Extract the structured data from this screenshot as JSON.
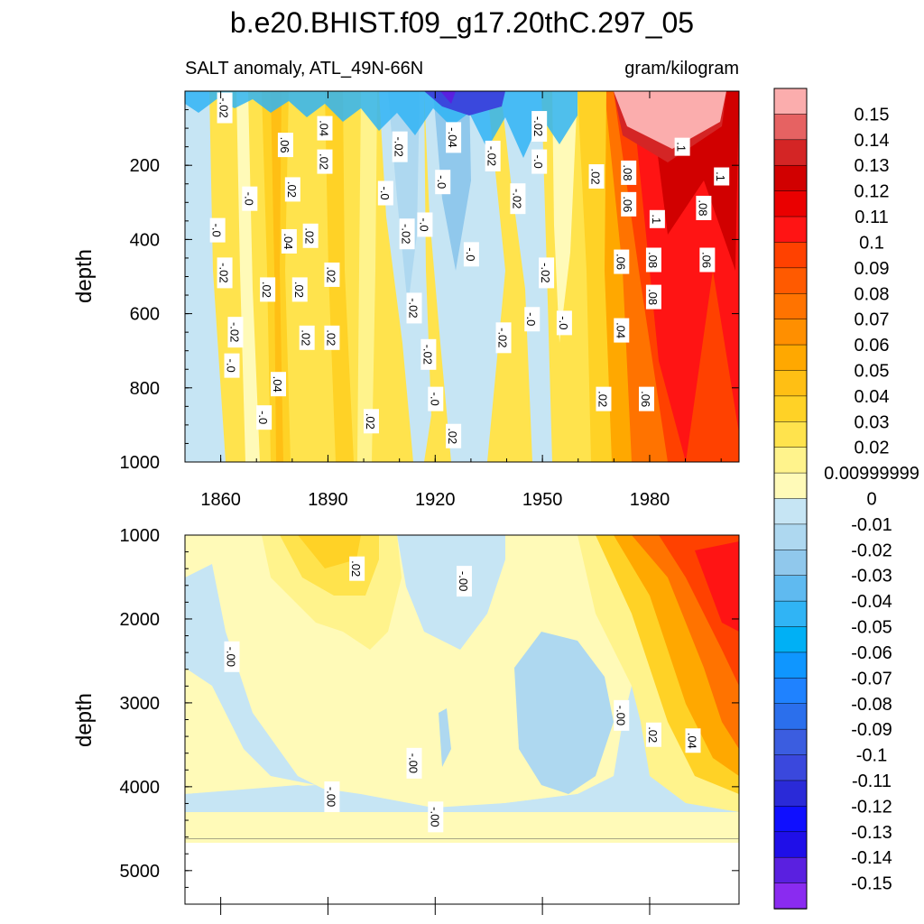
{
  "title": "b.e20.BHIST.f09_g17.20thC.297_05",
  "subtitle_left": "SALT anomaly, ATL_49N-66N",
  "subtitle_right": "gram/kilogram",
  "chart_data": [
    {
      "type": "heatmap",
      "panel": "upper",
      "ylabel": "depth",
      "xlim": [
        1850,
        2005
      ],
      "ylim": [
        1000,
        0
      ],
      "x_ticks": [
        1860,
        1890,
        1920,
        1950,
        1980
      ],
      "y_ticks": [
        200,
        400,
        600,
        800,
        1000
      ],
      "contour_labels": [
        {
          "text": "-.02",
          "x": 1861,
          "y": 45
        },
        {
          "text": ".06",
          "x": 1878,
          "y": 145
        },
        {
          "text": ".04",
          "x": 1889,
          "y": 100
        },
        {
          "text": "-.02",
          "x": 1910,
          "y": 150
        },
        {
          "text": "-.04",
          "x": 1925,
          "y": 125
        },
        {
          "text": "-.02",
          "x": 1949,
          "y": 95
        },
        {
          "text": "-.02",
          "x": 1936,
          "y": 175
        },
        {
          "text": "-.0",
          "x": 1949,
          "y": 190
        },
        {
          "text": ".02",
          "x": 1889,
          "y": 190
        },
        {
          "text": ".02",
          "x": 1880,
          "y": 265
        },
        {
          "text": "-.0",
          "x": 1868,
          "y": 290
        },
        {
          "text": "-.0",
          "x": 1906,
          "y": 275
        },
        {
          "text": "-.0",
          "x": 1922,
          "y": 245
        },
        {
          "text": "-.02",
          "x": 1943,
          "y": 290
        },
        {
          "text": ".02",
          "x": 1965,
          "y": 230
        },
        {
          "text": ".08",
          "x": 1974,
          "y": 220
        },
        {
          "text": ".06",
          "x": 1974,
          "y": 305
        },
        {
          "text": ".1",
          "x": 1989,
          "y": 150
        },
        {
          "text": ".1",
          "x": 2000,
          "y": 230
        },
        {
          "text": ".1",
          "x": 1982,
          "y": 345
        },
        {
          "text": ".08",
          "x": 1995,
          "y": 315
        },
        {
          "text": "-.0",
          "x": 1859,
          "y": 375
        },
        {
          "text": "-.0",
          "x": 1917,
          "y": 360
        },
        {
          "text": "-.02",
          "x": 1912,
          "y": 385
        },
        {
          "text": ".02",
          "x": 1885,
          "y": 390
        },
        {
          "text": ".04",
          "x": 1879,
          "y": 405
        },
        {
          "text": ".06",
          "x": 1972,
          "y": 460
        },
        {
          "text": ".08",
          "x": 1981,
          "y": 455
        },
        {
          "text": ".06",
          "x": 1996,
          "y": 455
        },
        {
          "text": "-.0",
          "x": 1930,
          "y": 440
        },
        {
          "text": "-.02",
          "x": 1861,
          "y": 490
        },
        {
          "text": ".02",
          "x": 1891,
          "y": 495
        },
        {
          "text": "-.02",
          "x": 1951,
          "y": 490
        },
        {
          "text": ".02",
          "x": 1873,
          "y": 535
        },
        {
          "text": ".02",
          "x": 1882,
          "y": 535
        },
        {
          "text": ".08",
          "x": 1981,
          "y": 555
        },
        {
          "text": "-.02",
          "x": 1914,
          "y": 585
        },
        {
          "text": "-.0",
          "x": 1947,
          "y": 615
        },
        {
          "text": "-.0",
          "x": 1956,
          "y": 625
        },
        {
          "text": ".04",
          "x": 1972,
          "y": 645
        },
        {
          "text": "-.02",
          "x": 1864,
          "y": 650
        },
        {
          "text": ".02",
          "x": 1884,
          "y": 665
        },
        {
          "text": ".02",
          "x": 1891,
          "y": 665
        },
        {
          "text": "-.02",
          "x": 1939,
          "y": 665
        },
        {
          "text": "-.02",
          "x": 1918,
          "y": 710
        },
        {
          "text": "-.0",
          "x": 1863,
          "y": 740
        },
        {
          "text": ".04",
          "x": 1876,
          "y": 790
        },
        {
          "text": ".02",
          "x": 1967,
          "y": 830
        },
        {
          "text": ".06",
          "x": 1979,
          "y": 830
        },
        {
          "text": "-.0",
          "x": 1920,
          "y": 830
        },
        {
          "text": "-.0",
          "x": 1872,
          "y": 880
        },
        {
          "text": ".02",
          "x": 1902,
          "y": 890
        },
        {
          "text": ".02",
          "x": 1925,
          "y": 930
        }
      ]
    },
    {
      "type": "heatmap",
      "panel": "lower",
      "ylabel": "depth",
      "xlim": [
        1850,
        2005
      ],
      "ylim": [
        5400,
        1000
      ],
      "y_ticks": [
        1000,
        2000,
        3000,
        4000,
        5000
      ],
      "data_bottom_depth": 4620,
      "contour_labels": [
        {
          "text": ".02",
          "x": 1898,
          "y": 1400
        },
        {
          "text": "-.00",
          "x": 1928,
          "y": 1550
        },
        {
          "text": "-.00",
          "x": 1863,
          "y": 2450
        },
        {
          "text": "-.00",
          "x": 1972,
          "y": 3150
        },
        {
          "text": ".02",
          "x": 1981,
          "y": 3380
        },
        {
          "text": ".04",
          "x": 1992,
          "y": 3450
        },
        {
          "text": "-.00",
          "x": 1914,
          "y": 3720
        },
        {
          "text": "-.00",
          "x": 1891,
          "y": 4120
        },
        {
          "text": "-.00",
          "x": 1920,
          "y": 4360
        }
      ]
    }
  ],
  "colorbar": {
    "levels": [
      "0.15",
      "0.14",
      "0.13",
      "0.12",
      "0.11",
      "0.1",
      "0.09",
      "0.08",
      "0.07",
      "0.06",
      "0.05",
      "0.04",
      "0.03",
      "0.02",
      "0.00999999",
      "0",
      "-0.01",
      "-0.02",
      "-0.03",
      "-0.04",
      "-0.05",
      "-0.06",
      "-0.07",
      "-0.08",
      "-0.09",
      "-0.1",
      "-0.11",
      "-0.12",
      "-0.13",
      "-0.14",
      "-0.15"
    ],
    "colors": [
      "#fbadad",
      "#e66262",
      "#d42525",
      "#d10000",
      "#ea0000",
      "#ff1414",
      "#ff4100",
      "#ff5a00",
      "#ff7300",
      "#ff8f00",
      "#ffa800",
      "#ffbf14",
      "#ffd226",
      "#ffe34d",
      "#fff38c",
      "#fffab8",
      "#c6e5f4",
      "#aed8f0",
      "#90c8ec",
      "#5fbaf0",
      "#30b4f5",
      "#00b0f5",
      "#0f96ff",
      "#1f82ff",
      "#2b6fec",
      "#3b5de0",
      "#3a48dd",
      "#2a2ad8",
      "#0f0fff",
      "#1f0fe8",
      "#5a20e0",
      "#8a2bf0"
    ]
  }
}
